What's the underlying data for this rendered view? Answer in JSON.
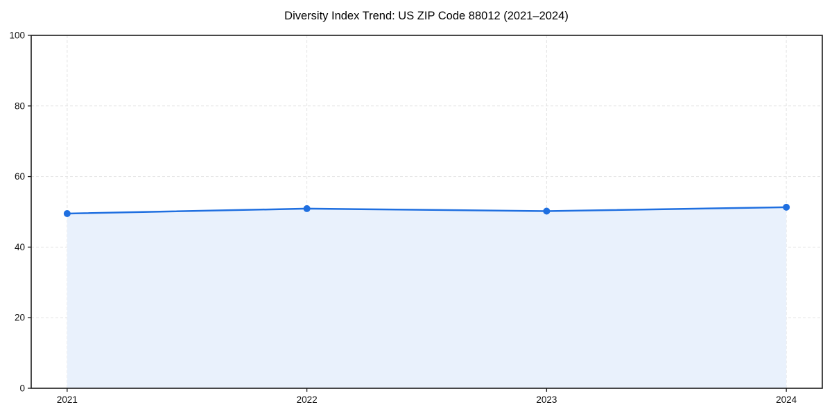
{
  "figure": {
    "title": "Diversity Index Trend: US ZIP Code 88012 (2021–2024)"
  },
  "chart_data": {
    "type": "area",
    "title": "Diversity Index Trend: US ZIP Code 88012 (2021–2024)",
    "xlabel": "",
    "ylabel": "",
    "categories": [
      "2021",
      "2022",
      "2023",
      "2024"
    ],
    "series": [
      {
        "name": "Diversity Index",
        "values": [
          49.5,
          50.9,
          50.2,
          51.3
        ]
      }
    ],
    "ylim": [
      0,
      100
    ],
    "yticks": [
      0,
      20,
      40,
      60,
      80,
      100
    ],
    "grid": true,
    "grid_style": "dashed",
    "legend": false,
    "colors": {
      "line": "#1f6fe0",
      "marker": "#1f6fe0",
      "fill": "#e9f1fc",
      "grid": "#e3e3e3",
      "spine": "#1a1a1a",
      "text": "#111111",
      "background": "#ffffff"
    }
  }
}
